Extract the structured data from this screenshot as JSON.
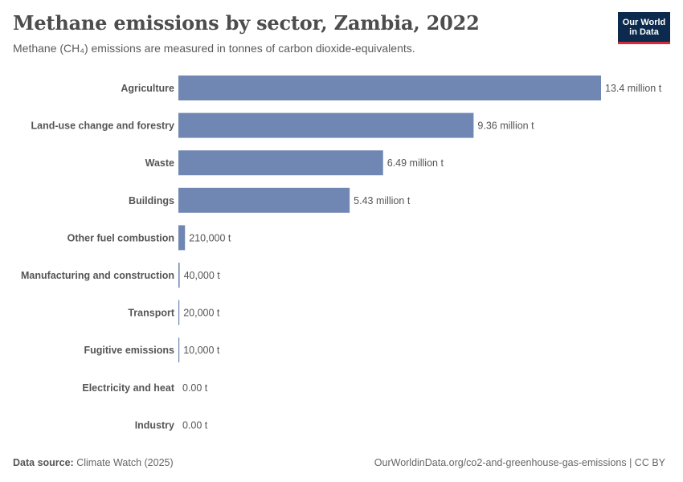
{
  "title": "Methane emissions by sector, Zambia, 2022",
  "subtitle": "Methane (CH₄) emissions are measured in tonnes of carbon dioxide-equivalents.",
  "logo": {
    "line1": "Our World",
    "line2": "in Data"
  },
  "footer": {
    "source_label": "Data source:",
    "source_value": "Climate Watch (2025)",
    "url": "OurWorldinData.org/co2-and-greenhouse-gas-emissions | CC BY"
  },
  "colors": {
    "bar": "#6f87b2",
    "text": "#555555"
  },
  "chart_data": {
    "type": "bar",
    "orientation": "horizontal",
    "title": "Methane emissions by sector, Zambia, 2022",
    "categories": [
      "Agriculture",
      "Land-use change and forestry",
      "Waste",
      "Buildings",
      "Other fuel combustion",
      "Manufacturing and construction",
      "Transport",
      "Fugitive emissions",
      "Electricity and heat",
      "Industry"
    ],
    "values": [
      13400000,
      9360000,
      6490000,
      5430000,
      210000,
      40000,
      20000,
      10000,
      0,
      0
    ],
    "labels": [
      "13.4 million t",
      "9.36 million t",
      "6.49 million t",
      "5.43 million t",
      "210,000 t",
      "40,000 t",
      "20,000 t",
      "10,000 t",
      "0.00 t",
      "0.00 t"
    ],
    "xlim": [
      0,
      13400000
    ],
    "grid": false,
    "legend": "none"
  }
}
